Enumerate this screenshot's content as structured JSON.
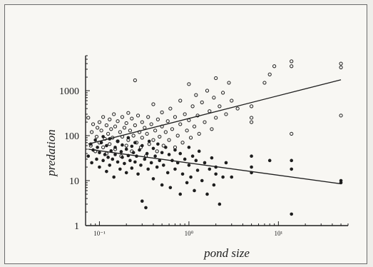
{
  "chart_data": {
    "type": "scatter",
    "title": "",
    "xlabel": "pond size",
    "ylabel": "predation",
    "x_scale": "log",
    "y_scale": "log",
    "xlim": [
      0.07,
      60
    ],
    "ylim": [
      1,
      6000
    ],
    "x_ticks": [
      {
        "value": 0.1,
        "label": "10⁻¹"
      },
      {
        "value": 1,
        "label": "10⁰"
      },
      {
        "value": 10,
        "label": "10¹"
      }
    ],
    "y_ticks": [
      {
        "value": 1,
        "label": "1"
      },
      {
        "value": 10,
        "label": "10"
      },
      {
        "value": 100,
        "label": "100"
      },
      {
        "value": 1000,
        "label": "1000"
      }
    ],
    "grid": false,
    "legend": "none",
    "colors": {
      "ink": "#1e1e1e",
      "paper": "#f8f7f3",
      "frame": "#6b6b6b"
    },
    "series": [
      {
        "marker": "open-circle",
        "points": [
          [
            0.075,
            250
          ],
          [
            0.08,
            60
          ],
          [
            0.082,
            120
          ],
          [
            0.085,
            180
          ],
          [
            0.09,
            45
          ],
          [
            0.093,
            95
          ],
          [
            0.095,
            150
          ],
          [
            0.1,
            70
          ],
          [
            0.1,
            200
          ],
          [
            0.105,
            130
          ],
          [
            0.11,
            55
          ],
          [
            0.11,
            260
          ],
          [
            0.115,
            85
          ],
          [
            0.12,
            40
          ],
          [
            0.12,
            170
          ],
          [
            0.125,
            110
          ],
          [
            0.13,
            65
          ],
          [
            0.13,
            230
          ],
          [
            0.135,
            140
          ],
          [
            0.14,
            90
          ],
          [
            0.145,
            300
          ],
          [
            0.15,
            50
          ],
          [
            0.15,
            160
          ],
          [
            0.16,
            75
          ],
          [
            0.16,
            210
          ],
          [
            0.17,
            120
          ],
          [
            0.175,
            35
          ],
          [
            0.18,
            95
          ],
          [
            0.18,
            260
          ],
          [
            0.19,
            150
          ],
          [
            0.2,
            60
          ],
          [
            0.2,
            190
          ],
          [
            0.21,
            80
          ],
          [
            0.21,
            320
          ],
          [
            0.22,
            130
          ],
          [
            0.23,
            45
          ],
          [
            0.23,
            240
          ],
          [
            0.24,
            100
          ],
          [
            0.25,
            170
          ],
          [
            0.25,
            1700
          ],
          [
            0.26,
            70
          ],
          [
            0.27,
            280
          ],
          [
            0.28,
            120
          ],
          [
            0.29,
            55
          ],
          [
            0.3,
            200
          ],
          [
            0.3,
            90
          ],
          [
            0.32,
            150
          ],
          [
            0.33,
            35
          ],
          [
            0.34,
            110
          ],
          [
            0.35,
            260
          ],
          [
            0.36,
            65
          ],
          [
            0.38,
            180
          ],
          [
            0.4,
            80
          ],
          [
            0.4,
            500
          ],
          [
            0.42,
            130
          ],
          [
            0.44,
            45
          ],
          [
            0.45,
            230
          ],
          [
            0.47,
            95
          ],
          [
            0.5,
            160
          ],
          [
            0.5,
            330
          ],
          [
            0.52,
            60
          ],
          [
            0.55,
            120
          ],
          [
            0.58,
            210
          ],
          [
            0.6,
            80
          ],
          [
            0.62,
            400
          ],
          [
            0.65,
            140
          ],
          [
            0.7,
            55
          ],
          [
            0.7,
            260
          ],
          [
            0.75,
            100
          ],
          [
            0.8,
            180
          ],
          [
            0.8,
            600
          ],
          [
            0.85,
            70
          ],
          [
            0.9,
            300
          ],
          [
            0.95,
            130
          ],
          [
            1.0,
            220
          ],
          [
            1.0,
            1400
          ],
          [
            1.05,
            90
          ],
          [
            1.1,
            450
          ],
          [
            1.15,
            160
          ],
          [
            1.2,
            800
          ],
          [
            1.25,
            280
          ],
          [
            1.3,
            110
          ],
          [
            1.4,
            550
          ],
          [
            1.5,
            200
          ],
          [
            1.6,
            1000
          ],
          [
            1.7,
            350
          ],
          [
            1.8,
            140
          ],
          [
            1.9,
            700
          ],
          [
            2.0,
            250
          ],
          [
            2.0,
            1900
          ],
          [
            2.2,
            450
          ],
          [
            2.4,
            900
          ],
          [
            2.6,
            300
          ],
          [
            2.8,
            1500
          ],
          [
            3.0,
            600
          ],
          [
            3.5,
            400
          ],
          [
            5.0,
            450
          ],
          [
            5.0,
            250
          ],
          [
            5.0,
            200
          ],
          [
            7.0,
            1500
          ],
          [
            8.0,
            2300
          ],
          [
            9.0,
            3500
          ],
          [
            14.0,
            4500
          ],
          [
            14.0,
            3500
          ],
          [
            14.0,
            110
          ],
          [
            50.0,
            4000
          ],
          [
            50.0,
            3300
          ],
          [
            50.0,
            280
          ]
        ]
      },
      {
        "marker": "filled-circle",
        "points": [
          [
            0.075,
            35
          ],
          [
            0.08,
            65
          ],
          [
            0.082,
            25
          ],
          [
            0.085,
            48
          ],
          [
            0.09,
            80
          ],
          [
            0.093,
            30
          ],
          [
            0.095,
            55
          ],
          [
            0.1,
            20
          ],
          [
            0.1,
            42
          ],
          [
            0.105,
            70
          ],
          [
            0.11,
            28
          ],
          [
            0.11,
            95
          ],
          [
            0.115,
            38
          ],
          [
            0.12,
            16
          ],
          [
            0.12,
            60
          ],
          [
            0.125,
            33
          ],
          [
            0.13,
            85
          ],
          [
            0.13,
            22
          ],
          [
            0.135,
            46
          ],
          [
            0.14,
            30
          ],
          [
            0.145,
            12
          ],
          [
            0.15,
            55
          ],
          [
            0.15,
            38
          ],
          [
            0.16,
            26
          ],
          [
            0.16,
            75
          ],
          [
            0.17,
            18
          ],
          [
            0.175,
            44
          ],
          [
            0.18,
            33
          ],
          [
            0.18,
            62
          ],
          [
            0.19,
            24
          ],
          [
            0.2,
            50
          ],
          [
            0.2,
            15
          ],
          [
            0.21,
            36
          ],
          [
            0.21,
            90
          ],
          [
            0.22,
            28
          ],
          [
            0.23,
            58
          ],
          [
            0.23,
            19
          ],
          [
            0.24,
            42
          ],
          [
            0.25,
            26
          ],
          [
            0.25,
            70
          ],
          [
            0.26,
            35
          ],
          [
            0.27,
            14
          ],
          [
            0.28,
            48
          ],
          [
            0.29,
            22
          ],
          [
            0.3,
            3.5
          ],
          [
            0.3,
            60
          ],
          [
            0.32,
            30
          ],
          [
            0.33,
            2.5
          ],
          [
            0.34,
            40
          ],
          [
            0.35,
            18
          ],
          [
            0.36,
            75
          ],
          [
            0.38,
            25
          ],
          [
            0.4,
            52
          ],
          [
            0.4,
            11
          ],
          [
            0.42,
            35
          ],
          [
            0.44,
            20
          ],
          [
            0.45,
            65
          ],
          [
            0.47,
            28
          ],
          [
            0.5,
            8
          ],
          [
            0.5,
            42
          ],
          [
            0.52,
            22
          ],
          [
            0.55,
            55
          ],
          [
            0.58,
            15
          ],
          [
            0.6,
            38
          ],
          [
            0.62,
            7
          ],
          [
            0.65,
            28
          ],
          [
            0.7,
            48
          ],
          [
            0.7,
            18
          ],
          [
            0.75,
            25
          ],
          [
            0.8,
            5
          ],
          [
            0.8,
            40
          ],
          [
            0.85,
            14
          ],
          [
            0.9,
            30
          ],
          [
            0.95,
            9
          ],
          [
            1.0,
            22
          ],
          [
            1.0,
            55
          ],
          [
            1.05,
            12
          ],
          [
            1.1,
            35
          ],
          [
            1.15,
            6
          ],
          [
            1.2,
            28
          ],
          [
            1.25,
            17
          ],
          [
            1.3,
            45
          ],
          [
            1.4,
            10
          ],
          [
            1.5,
            25
          ],
          [
            1.6,
            5
          ],
          [
            1.7,
            18
          ],
          [
            1.8,
            32
          ],
          [
            1.9,
            8
          ],
          [
            2.0,
            20
          ],
          [
            2.0,
            14
          ],
          [
            2.2,
            3
          ],
          [
            2.4,
            12
          ],
          [
            2.6,
            25
          ],
          [
            3.0,
            12
          ],
          [
            5.0,
            35
          ],
          [
            5.0,
            20
          ],
          [
            5.0,
            15
          ],
          [
            8.0,
            28
          ],
          [
            14.0,
            18
          ],
          [
            14.0,
            28
          ],
          [
            14.0,
            1.8
          ],
          [
            50.0,
            9
          ],
          [
            50.0,
            10
          ]
        ]
      }
    ],
    "trend_lines": [
      {
        "x": [
          0.075,
          50
        ],
        "y": [
          65,
          1750
        ]
      },
      {
        "x": [
          0.075,
          50
        ],
        "y": [
          50,
          8.5
        ]
      }
    ]
  }
}
